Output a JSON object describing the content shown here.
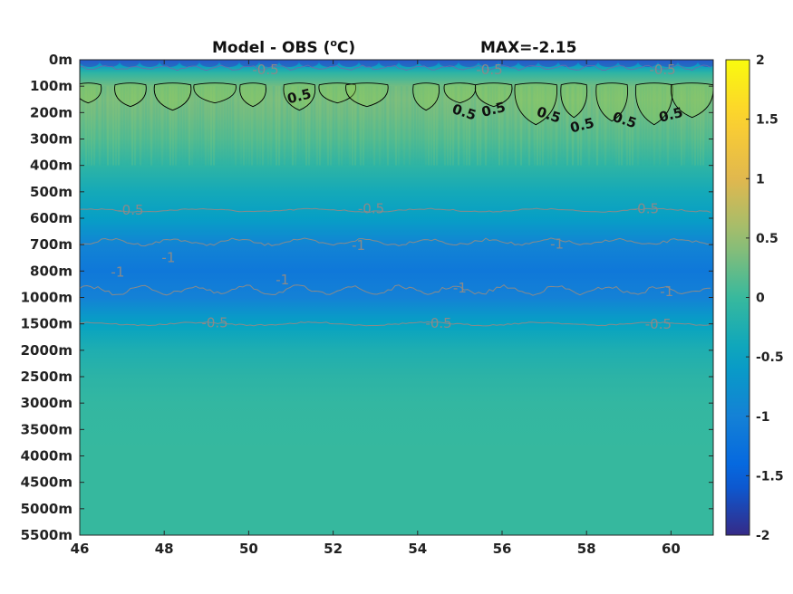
{
  "chart_data": {
    "type": "heatmap",
    "title_left": "Model - OBS (",
    "title_unit_super": "o",
    "title_unit_end": "C)",
    "title_right": "MAX=-2.15",
    "x_ticks": [
      "46",
      "48",
      "50",
      "52",
      "54",
      "56",
      "58",
      "60"
    ],
    "x_tick_values": [
      46,
      48,
      50,
      52,
      54,
      56,
      58,
      60
    ],
    "xlim": [
      46,
      61
    ],
    "y_ticks": [
      "0m",
      "100m",
      "200m",
      "300m",
      "400m",
      "500m",
      "600m",
      "700m",
      "800m",
      "1000m",
      "1500m",
      "2000m",
      "2500m",
      "3000m",
      "3500m",
      "4000m",
      "4500m",
      "5000m",
      "5500m"
    ],
    "y_depths": [
      0,
      100,
      200,
      300,
      400,
      500,
      600,
      700,
      800,
      1000,
      1500,
      2000,
      2500,
      3000,
      3500,
      4000,
      4500,
      5000,
      5500
    ],
    "colorbar": {
      "colormap": "parula",
      "clim": [
        -2,
        2
      ],
      "ticks": [
        "2",
        "1.5",
        "1",
        "0.5",
        "0",
        "-0.5",
        "-1",
        "-1.5",
        "-2"
      ],
      "tick_values": [
        2,
        1.5,
        1,
        0.5,
        0,
        -0.5,
        -1,
        -1.5,
        -2
      ]
    },
    "depth_profile": [
      {
        "depth": 0,
        "value": -1.2
      },
      {
        "depth": 20,
        "value": -0.6
      },
      {
        "depth": 50,
        "value": -0.1
      },
      {
        "depth": 100,
        "value": 0.3
      },
      {
        "depth": 150,
        "value": 0.35
      },
      {
        "depth": 200,
        "value": 0.3
      },
      {
        "depth": 300,
        "value": 0.15
      },
      {
        "depth": 400,
        "value": -0.1
      },
      {
        "depth": 500,
        "value": -0.35
      },
      {
        "depth": 600,
        "value": -0.55
      },
      {
        "depth": 700,
        "value": -0.95
      },
      {
        "depth": 800,
        "value": -1.15
      },
      {
        "depth": 1000,
        "value": -1.0
      },
      {
        "depth": 1500,
        "value": -0.5
      },
      {
        "depth": 2000,
        "value": -0.25
      },
      {
        "depth": 2500,
        "value": -0.12
      },
      {
        "depth": 3000,
        "value": -0.05
      },
      {
        "depth": 4000,
        "value": -0.02
      },
      {
        "depth": 5500,
        "value": -0.02
      }
    ],
    "contour_labels": [
      {
        "text": "0.5",
        "x": 51.2,
        "depth": 140
      },
      {
        "text": "0.5",
        "x": 55.1,
        "depth": 200
      },
      {
        "text": "0.5",
        "x": 55.8,
        "depth": 190
      },
      {
        "text": "0.5",
        "x": 57.1,
        "depth": 210
      },
      {
        "text": "0.5",
        "x": 57.9,
        "depth": 250
      },
      {
        "text": "0.5",
        "x": 58.9,
        "depth": 230
      },
      {
        "text": "0.5",
        "x": 60.0,
        "depth": 210
      },
      {
        "text": "-0.5",
        "x": 50.4,
        "depth": 40
      },
      {
        "text": "-0.5",
        "x": 55.7,
        "depth": 40
      },
      {
        "text": "-0.5",
        "x": 59.8,
        "depth": 40
      },
      {
        "text": "-0.5",
        "x": 47.2,
        "depth": 570
      },
      {
        "text": "-0.5",
        "x": 52.9,
        "depth": 565
      },
      {
        "text": "-0.5",
        "x": 59.4,
        "depth": 565
      },
      {
        "text": "-1",
        "x": 48.1,
        "depth": 750
      },
      {
        "text": "-1",
        "x": 52.6,
        "depth": 705
      },
      {
        "text": "-1",
        "x": 57.3,
        "depth": 700
      },
      {
        "text": "-1",
        "x": 46.9,
        "depth": 810
      },
      {
        "text": "-1",
        "x": 50.8,
        "depth": 870
      },
      {
        "text": "-1",
        "x": 55.0,
        "depth": 930
      },
      {
        "text": "-1",
        "x": 59.9,
        "depth": 960
      },
      {
        "text": "-0.5",
        "x": 49.2,
        "depth": 1490
      },
      {
        "text": "-0.5",
        "x": 54.5,
        "depth": 1500
      },
      {
        "text": "-0.5",
        "x": 59.7,
        "depth": 1510
      }
    ]
  }
}
